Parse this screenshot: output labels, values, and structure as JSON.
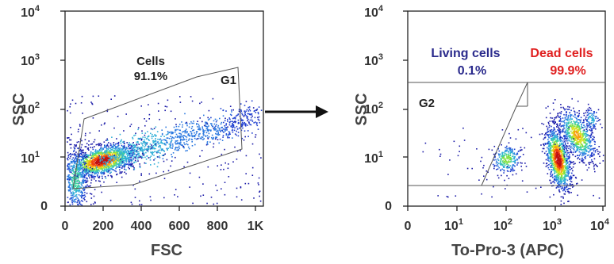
{
  "chart_data": [
    {
      "type": "scatter",
      "plot": "density",
      "xlabel": "FSC",
      "ylabel": "SSC",
      "x_scale": "linear",
      "y_scale": "log",
      "xlim": [
        0,
        1000
      ],
      "ylim": [
        0,
        10000
      ],
      "x_ticks": [
        "0",
        "200",
        "400",
        "600",
        "800",
        "1K"
      ],
      "y_ticks": [
        "0",
        "10¹",
        "10²",
        "10³",
        "10⁴"
      ],
      "gates": [
        {
          "name": "G1",
          "label": "Cells",
          "percent": "91.1%",
          "vertices": [
            [
              40,
              25
            ],
            [
              100,
              70
            ],
            [
              480,
              450
            ],
            [
              700,
              600
            ],
            [
              870,
              700
            ],
            [
              910,
              15
            ]
          ]
        }
      ],
      "clusters": [
        {
          "x": 200,
          "y": 10,
          "spread": "high density core"
        },
        {
          "x": 30,
          "y": 3,
          "spread": "low events near origin"
        },
        {
          "x": 500,
          "y": 40,
          "spread": "diagonal tail"
        },
        {
          "x": 800,
          "y": 60,
          "spread": "right edge band"
        }
      ]
    },
    {
      "type": "scatter",
      "plot": "density",
      "xlabel": "To-Pro-3 (APC)",
      "ylabel": "SSC",
      "x_scale": "log",
      "y_scale": "log",
      "xlim": [
        0,
        10000
      ],
      "ylim": [
        0,
        10000
      ],
      "x_ticks": [
        "0",
        "10¹",
        "10²",
        "10³",
        "10⁴"
      ],
      "y_ticks": [
        "0",
        "10¹",
        "10²",
        "10³",
        "10⁴"
      ],
      "gates": [
        {
          "name": "G2",
          "label": "Living cells",
          "percent": "0.1%",
          "color": "#2a2a8c"
        },
        {
          "name": "",
          "label": "Dead cells",
          "percent": "99.9%",
          "color": "#e02020"
        }
      ],
      "clusters": [
        {
          "x": 60,
          "y": 15,
          "spread": "small cluster"
        },
        {
          "x": 1000,
          "y": 10,
          "spread": "main cluster"
        },
        {
          "x": 2500,
          "y": 30,
          "spread": "upper right cluster"
        }
      ]
    }
  ],
  "panel1": {
    "y_ticks": [
      "0",
      "10",
      "10",
      "10",
      "10"
    ],
    "y_exps": [
      "",
      "1",
      "2",
      "3",
      "4"
    ],
    "x_ticks": [
      "0",
      "200",
      "400",
      "600",
      "800",
      "1K"
    ],
    "xlabel": "FSC",
    "ylabel": "SSC",
    "gate_title": "Cells",
    "gate_pct": "91.1%",
    "gate_name": "G1"
  },
  "panel2": {
    "y_ticks": [
      "0",
      "10",
      "10",
      "10",
      "10"
    ],
    "y_exps": [
      "",
      "1",
      "2",
      "3",
      "4"
    ],
    "x_ticks": [
      "0",
      "10",
      "10",
      "10",
      "10"
    ],
    "x_exps": [
      "",
      "1",
      "2",
      "3",
      "4"
    ],
    "xlabel": "To-Pro-3 (APC)",
    "ylabel": "SSC",
    "living_label": "Living cells",
    "living_pct": "0.1%",
    "dead_label": "Dead cells",
    "dead_pct": "99.9%",
    "gate_name": "G2",
    "living_color": "#2a2a8c",
    "dead_color": "#e02020"
  }
}
